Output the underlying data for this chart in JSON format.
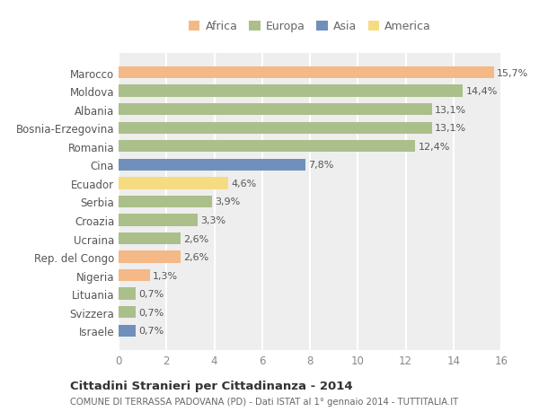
{
  "countries": [
    "Marocco",
    "Moldova",
    "Albania",
    "Bosnia-Erzegovina",
    "Romania",
    "Cina",
    "Ecuador",
    "Serbia",
    "Croazia",
    "Ucraina",
    "Rep. del Congo",
    "Nigeria",
    "Lituania",
    "Svizzera",
    "Israele"
  ],
  "values": [
    15.7,
    14.4,
    13.1,
    13.1,
    12.4,
    7.8,
    4.6,
    3.9,
    3.3,
    2.6,
    2.6,
    1.3,
    0.7,
    0.7,
    0.7
  ],
  "labels": [
    "15,7%",
    "14,4%",
    "13,1%",
    "13,1%",
    "12,4%",
    "7,8%",
    "4,6%",
    "3,9%",
    "3,3%",
    "2,6%",
    "2,6%",
    "1,3%",
    "0,7%",
    "0,7%",
    "0,7%"
  ],
  "continents": [
    "Africa",
    "Europa",
    "Europa",
    "Europa",
    "Europa",
    "Asia",
    "America",
    "Europa",
    "Europa",
    "Europa",
    "Africa",
    "Africa",
    "Europa",
    "Europa",
    "Asia"
  ],
  "colors": {
    "Africa": "#F5B887",
    "Europa": "#AABF8A",
    "Asia": "#7090BB",
    "America": "#F5DC80"
  },
  "xlim": [
    0,
    16
  ],
  "xticks": [
    0,
    2,
    4,
    6,
    8,
    10,
    12,
    14,
    16
  ],
  "title": "Cittadini Stranieri per Cittadinanza - 2014",
  "subtitle": "COMUNE DI TERRASSA PADOVANA (PD) - Dati ISTAT al 1° gennaio 2014 - TUTTITALIA.IT",
  "background_color": "#ffffff",
  "axes_bg_color": "#eeeeee",
  "grid_color": "#ffffff",
  "legend_order": [
    "Africa",
    "Europa",
    "Asia",
    "America"
  ]
}
